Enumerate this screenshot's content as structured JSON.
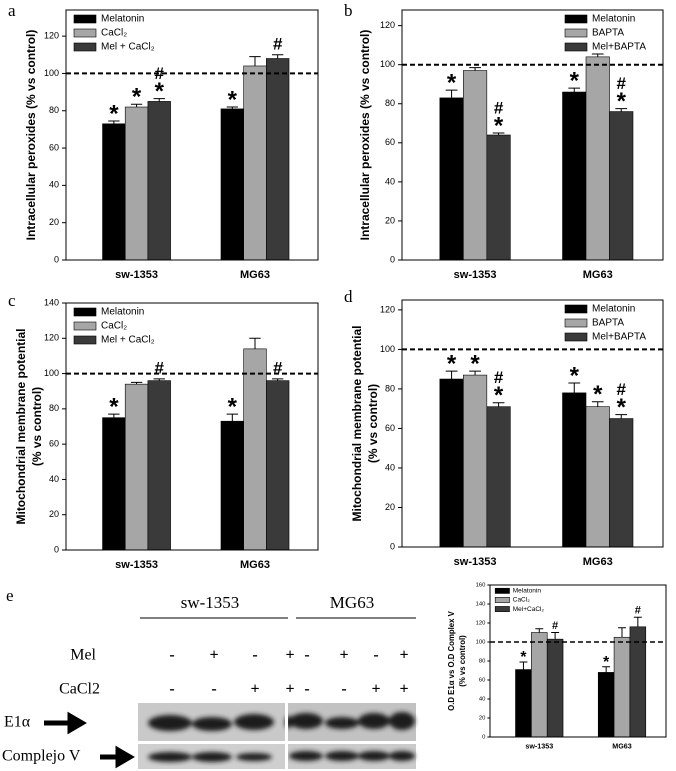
{
  "chart_data": [
    {
      "type": "bar",
      "label": "a",
      "ylabel": [
        "Intracellular peroxides (% vs control)"
      ],
      "categories": [
        "sw-1353",
        "MG63"
      ],
      "series": [
        {
          "name": "Melatonin",
          "color": "#000000",
          "values": [
            73,
            81
          ],
          "errors": [
            1.5,
            1
          ],
          "annotations": [
            [
              "*"
            ],
            [
              "*"
            ]
          ]
        },
        {
          "name": "CaCl₂",
          "color": "#a6a6a6",
          "values": [
            82,
            104
          ],
          "errors": [
            1.5,
            5
          ],
          "annotations": [
            [
              "*"
            ],
            []
          ]
        },
        {
          "name": "Mel + CaCl₂",
          "color": "#3a3a3a",
          "values": [
            85,
            108
          ],
          "errors": [
            1.5,
            2
          ],
          "annotations": [
            [
              "#",
              "*"
            ],
            [
              "#"
            ]
          ]
        }
      ],
      "ylim": [
        0,
        134
      ],
      "yticks": [
        0,
        20,
        40,
        60,
        80,
        100,
        120
      ],
      "reference_line": 100,
      "legend": "upper left"
    },
    {
      "type": "bar",
      "label": "b",
      "ylabel": [
        "Intracellular peroxides (% vs control)"
      ],
      "categories": [
        "sw-1353",
        "MG63"
      ],
      "series": [
        {
          "name": "Melatonin",
          "color": "#000000",
          "values": [
            83,
            86
          ],
          "errors": [
            4,
            2
          ],
          "annotations": [
            [
              "*"
            ],
            [
              "*"
            ]
          ]
        },
        {
          "name": "BAPTA",
          "color": "#a6a6a6",
          "values": [
            97,
            104
          ],
          "errors": [
            1.5,
            1.5
          ],
          "annotations": [
            [],
            []
          ]
        },
        {
          "name": "Mel+BAPTA",
          "color": "#3a3a3a",
          "values": [
            64,
            76
          ],
          "errors": [
            1,
            1.5
          ],
          "annotations": [
            [
              "#",
              "*"
            ],
            [
              "#",
              "*"
            ]
          ]
        }
      ],
      "ylim": [
        0,
        128
      ],
      "yticks": [
        0,
        20,
        40,
        60,
        80,
        100,
        120
      ],
      "reference_line": 100,
      "legend": "upper right"
    },
    {
      "type": "bar",
      "label": "c",
      "ylabel": [
        "Mitochondrial membrane potential",
        "(% vs control)"
      ],
      "categories": [
        "sw-1353",
        "MG63"
      ],
      "series": [
        {
          "name": "Melatonin",
          "color": "#000000",
          "values": [
            75,
            73
          ],
          "errors": [
            2,
            4
          ],
          "annotations": [
            [
              "*"
            ],
            [
              "*"
            ]
          ]
        },
        {
          "name": "CaCl₂",
          "color": "#a6a6a6",
          "values": [
            94,
            114
          ],
          "errors": [
            1,
            6
          ],
          "annotations": [
            [],
            []
          ]
        },
        {
          "name": "Mel + CaCl₂",
          "color": "#3a3a3a",
          "values": [
            96,
            96
          ],
          "errors": [
            1,
            1
          ],
          "annotations": [
            [
              "#"
            ],
            [
              "#"
            ]
          ]
        }
      ],
      "ylim": [
        0,
        140
      ],
      "yticks": [
        0,
        20,
        40,
        60,
        80,
        100,
        120,
        140
      ],
      "reference_line": 100,
      "legend": "upper left"
    },
    {
      "type": "bar",
      "label": "d",
      "ylabel": [
        "Mitochondrial membrane potential",
        "(% vs control)"
      ],
      "categories": [
        "sw-1353",
        "MG63"
      ],
      "series": [
        {
          "name": "Melatonin",
          "color": "#000000",
          "values": [
            85,
            78
          ],
          "errors": [
            4,
            5
          ],
          "annotations": [
            [
              "*"
            ],
            [
              "*"
            ]
          ]
        },
        {
          "name": "BAPTA",
          "color": "#a6a6a6",
          "values": [
            87,
            71
          ],
          "errors": [
            2,
            2.5
          ],
          "annotations": [
            [
              "*"
            ],
            [
              "*"
            ]
          ]
        },
        {
          "name": "Mel+BAPTA",
          "color": "#3a3a3a",
          "values": [
            71,
            65
          ],
          "errors": [
            2,
            2
          ],
          "annotations": [
            [
              "#",
              "*"
            ],
            [
              "#",
              "*"
            ]
          ]
        }
      ],
      "ylim": [
        0,
        125
      ],
      "yticks": [
        0,
        20,
        40,
        60,
        80,
        100,
        120
      ],
      "reference_line": 100,
      "legend": "upper right"
    },
    {
      "type": "bar",
      "ylabel": [
        "O.D E1α vs O.D Complex V",
        "(% vs control)"
      ],
      "categories": [
        "sw-1353",
        "MG63"
      ],
      "series": [
        {
          "name": "Melatonin",
          "color": "#000000",
          "values": [
            71,
            68
          ],
          "errors": [
            8,
            6
          ],
          "annotations": [
            [
              "*"
            ],
            [
              "*"
            ]
          ]
        },
        {
          "name": "CaCl₂",
          "color": "#a6a6a6",
          "values": [
            110,
            105
          ],
          "errors": [
            4,
            10
          ],
          "annotations": [
            [],
            []
          ]
        },
        {
          "name": "Mel+CaCl₂",
          "color": "#3a3a3a",
          "values": [
            103,
            116
          ],
          "errors": [
            7,
            10
          ],
          "annotations": [
            [
              "#"
            ],
            [
              "#"
            ]
          ]
        }
      ],
      "ylim": [
        0,
        160
      ],
      "yticks": [
        0,
        20,
        40,
        60,
        80,
        100,
        120,
        140,
        160
      ],
      "reference_line": 100,
      "legend": "upper left"
    }
  ],
  "blot": {
    "label": "e",
    "groups": [
      "sw-1353",
      "MG63"
    ],
    "rows": [
      {
        "name": "Mel",
        "signs": [
          "-",
          "+",
          "-",
          "+",
          "-",
          "+",
          "-",
          "+"
        ]
      },
      {
        "name": "CaCl2",
        "signs": [
          "-",
          "-",
          "+",
          "+",
          "-",
          "-",
          "+",
          "+"
        ]
      }
    ],
    "bands": [
      "E1α",
      "Complejo V"
    ]
  }
}
